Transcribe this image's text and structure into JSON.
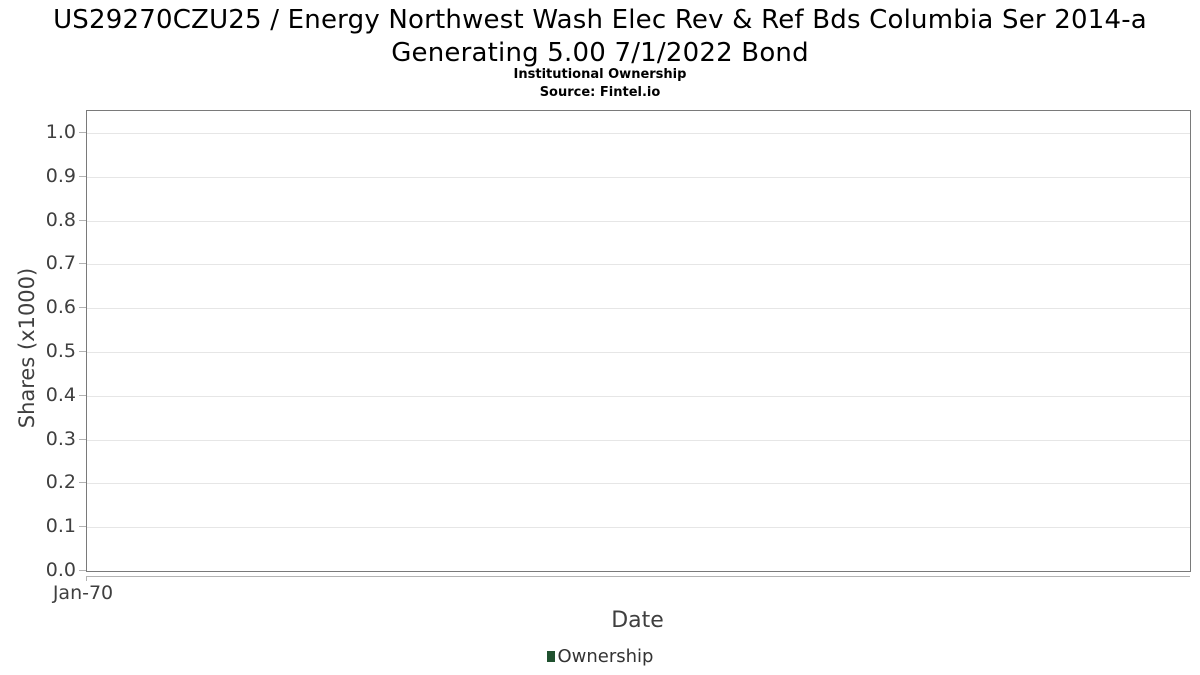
{
  "header": {
    "title_line1": "US29270CZU25 / Energy Northwest Wash Elec Rev & Ref Bds Columbia Ser 2014-a",
    "title_line2": "Generating 5.00 7/1/2022 Bond",
    "subtitle": "Institutional Ownership",
    "source": "Source: Fintel.io"
  },
  "chart_data": {
    "type": "line",
    "title": "US29270CZU25 / Energy Northwest Wash Elec Rev & Ref Bds Columbia Ser 2014-a Generating 5.00 7/1/2022 Bond",
    "subtitle": "Institutional Ownership",
    "source": "Source: Fintel.io",
    "xlabel": "Date",
    "ylabel": "Shares (x1000)",
    "x_ticks": [
      "Jan-70"
    ],
    "y_ticks": [
      "0.0",
      "0.1",
      "0.2",
      "0.3",
      "0.4",
      "0.5",
      "0.6",
      "0.7",
      "0.8",
      "0.9",
      "1.0"
    ],
    "ylim": [
      0.0,
      1.05
    ],
    "grid": "horizontal",
    "legend_position": "bottom",
    "series": [
      {
        "name": "Ownership",
        "x": [],
        "values": []
      }
    ]
  },
  "legend": {
    "entries": [
      {
        "label": "Ownership",
        "color": "#20512f"
      }
    ]
  },
  "colors": {
    "background": "#ffffff",
    "title_text": "#000000",
    "axis_text": "#3f3f3f",
    "plot_border": "#7a7a7a",
    "gridline": "#e6e6e6",
    "axis_line": "#b3b3b3",
    "legend_marker": "#20512f",
    "legend_text": "#333333"
  }
}
